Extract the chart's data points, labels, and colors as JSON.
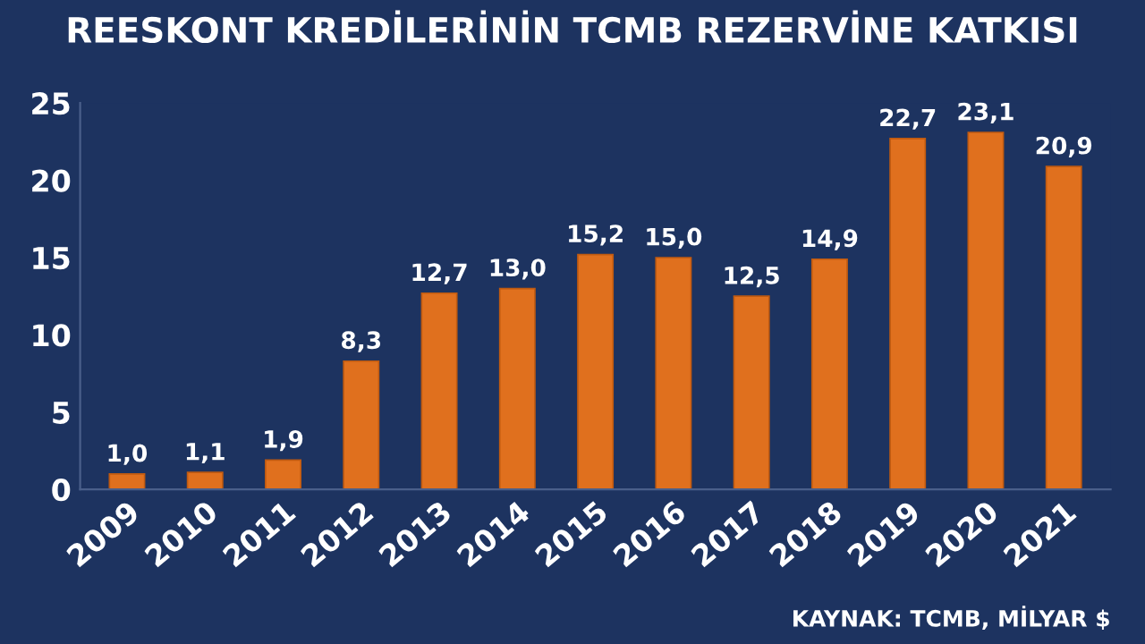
{
  "chart_data": {
    "type": "bar",
    "title": "REESKONT KREDİLERİNİN TCMB REZERVİNE KATKISI",
    "categories": [
      "2009",
      "2010",
      "2011",
      "2012",
      "2013",
      "2014",
      "2015",
      "2016",
      "2017",
      "2018",
      "2019",
      "2020",
      "2021"
    ],
    "values": [
      1.0,
      1.1,
      1.9,
      8.3,
      12.7,
      13.0,
      15.2,
      15.0,
      12.5,
      14.9,
      22.7,
      23.1,
      20.9
    ],
    "value_labels": [
      "1,0",
      "1,1",
      "1,9",
      "8,3",
      "12,7",
      "13,0",
      "15,2",
      "15,0",
      "12,5",
      "14,9",
      "22,7",
      "23,1",
      "20,9"
    ],
    "color": "#e0701e",
    "ylim": [
      0,
      25
    ],
    "yticks": [
      0,
      5,
      10,
      15,
      20,
      25
    ],
    "grid": false,
    "annotations": [
      "KAYNAK: TCMB, MİLYAR $"
    ]
  }
}
